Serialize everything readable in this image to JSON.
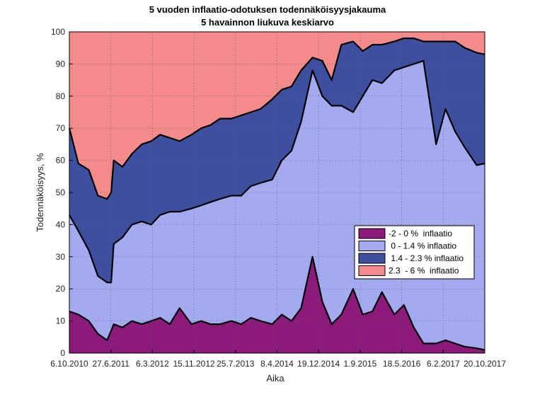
{
  "chart_data": {
    "type": "area",
    "stacked": true,
    "title": "5 vuoden inflaatio-odotuksen todennäköisyysjakauma",
    "subtitle": "5 havainnon liukuva keskiarvo",
    "xlabel": "Aika",
    "ylabel": "Todennäköisyys, %",
    "ylim": [
      0,
      100
    ],
    "yticks": [
      0,
      10,
      20,
      30,
      40,
      50,
      60,
      70,
      80,
      90,
      100
    ],
    "xticks": [
      "6.10.2010",
      "27.6.2011",
      "6.3.2012",
      "15.11.2012",
      "25.7.2013",
      "8.4.2014",
      "19.12.2014",
      "1.9.2015",
      "18.5.2016",
      "6.2.2017",
      "20.10.2017"
    ],
    "grid": true,
    "legend_position": "lower-right",
    "x": [
      "6.10.2010",
      "2.12.2010",
      "6.2.2011",
      "4.4.2011",
      "1.6.2011",
      "27.6.2011",
      "13.7.2011",
      "6.9.2011",
      "5.11.2011",
      "6.1.2012",
      "6.3.2012",
      "1.5.2012",
      "1.7.2012",
      "1.9.2012",
      "15.11.2012",
      "15.1.2013",
      "15.3.2013",
      "15.5.2013",
      "25.7.2013",
      "25.9.2013",
      "25.11.2013",
      "25.1.2014",
      "8.4.2014",
      "8.6.2014",
      "8.8.2014",
      "8.10.2014",
      "19.12.2014",
      "19.2.2015",
      "19.4.2015",
      "19.6.2015",
      "1.9.2015",
      "1.11.2015",
      "1.1.2016",
      "1.3.2016",
      "18.5.2016",
      "18.7.2016",
      "18.9.2016",
      "18.11.2016",
      "6.2.2017",
      "6.4.2017",
      "6.6.2017",
      "6.8.2017",
      "20.10.2017",
      "10.12.2017"
    ],
    "series": [
      {
        "name": "-2 - 0 %  inflaatio",
        "color": "#8b1a7a",
        "values": [
          13,
          12,
          10,
          6,
          4,
          7,
          9,
          8,
          10,
          9,
          10,
          11,
          9,
          14,
          9,
          10,
          9,
          9,
          10,
          9,
          11,
          10,
          9,
          12,
          10,
          14,
          30,
          16,
          9,
          12,
          20,
          12,
          13,
          19,
          12,
          15,
          8,
          3,
          3,
          4,
          3,
          2,
          1.5,
          1
        ]
      },
      {
        "name": " 0 - 1.4 % inflaatio",
        "color": "#a4aaef",
        "values": [
          30,
          26,
          22,
          18,
          18,
          15,
          25,
          28,
          30,
          32,
          30,
          32,
          35,
          30,
          36,
          36,
          38,
          39,
          39,
          40,
          41,
          43,
          45,
          48,
          53,
          58,
          58,
          64,
          68,
          65,
          55,
          68,
          72,
          65,
          76,
          74,
          82,
          88,
          62,
          72,
          66,
          62,
          57,
          58
        ]
      },
      {
        "name": " 1.4 - 2.3 % inflaatio",
        "color": "#3f4f9f",
        "values": [
          27,
          21,
          25,
          25,
          26,
          28,
          26,
          22,
          22,
          24,
          26,
          25,
          23,
          22,
          23,
          24,
          24,
          25,
          24,
          25,
          23,
          23,
          25,
          22,
          20,
          16,
          4,
          11,
          8,
          19,
          22,
          14,
          11,
          12,
          9,
          9,
          8,
          6,
          32,
          21,
          28,
          31,
          35,
          34
        ]
      },
      {
        "name": "2.3  - 6 %  inflaatio",
        "color": "#f48a89",
        "values": [
          30,
          41,
          43,
          51,
          52,
          50,
          40,
          42,
          38,
          35,
          34,
          32,
          33,
          34,
          32,
          30,
          29,
          27,
          27,
          26,
          25,
          24,
          21,
          18,
          17,
          12,
          8,
          9,
          15,
          4,
          3,
          6,
          4,
          4,
          3,
          2,
          2,
          3,
          3,
          3,
          3,
          5,
          6.5,
          7
        ]
      }
    ]
  }
}
